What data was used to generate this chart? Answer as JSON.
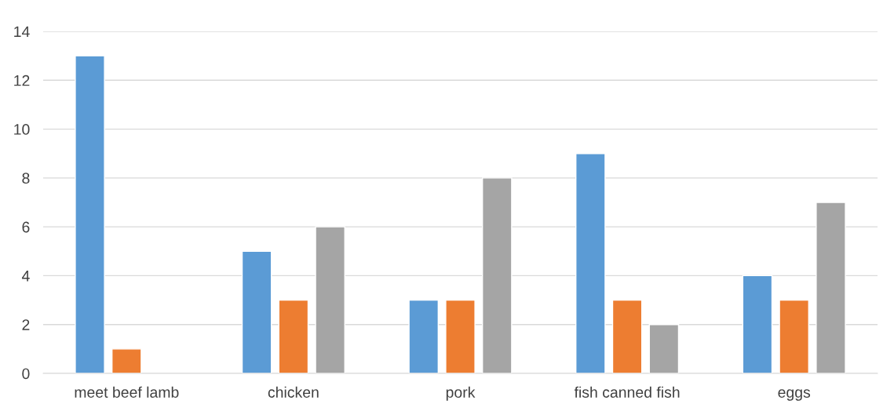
{
  "chart_data": {
    "type": "bar",
    "categories": [
      "meet beef lamb",
      "chicken",
      "pork",
      "fish canned fish",
      "eggs"
    ],
    "series": [
      {
        "color": "#5b9bd5",
        "values": [
          13,
          5,
          3,
          9,
          4
        ]
      },
      {
        "color": "#ed7d31",
        "values": [
          1,
          3,
          3,
          3,
          3
        ]
      },
      {
        "color": "#a5a5a5",
        "values": [
          null,
          6,
          8,
          2,
          7
        ]
      }
    ],
    "ylim": [
      0,
      14
    ],
    "yticks": [
      0,
      2,
      4,
      6,
      8,
      10,
      12,
      14
    ],
    "grid": "y",
    "legend": false
  }
}
